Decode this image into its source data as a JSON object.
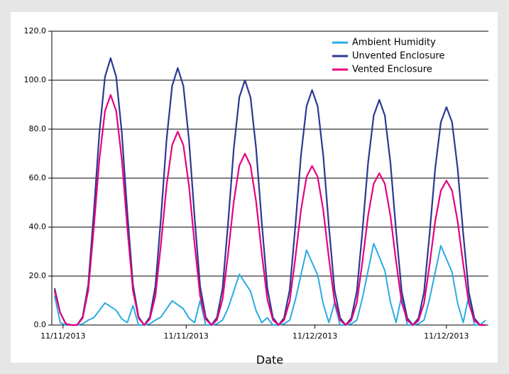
{
  "chart_data": {
    "type": "line",
    "x_label": "Date",
    "x": [
      0,
      2,
      4,
      6,
      8,
      10,
      12,
      14,
      16,
      18,
      20,
      22,
      24,
      26,
      28,
      30,
      32,
      34,
      36,
      38,
      40,
      42,
      44,
      46,
      48,
      50,
      52,
      54,
      56,
      58,
      60,
      62,
      64,
      66,
      68,
      70,
      72,
      74,
      76,
      78,
      80,
      82,
      84,
      86,
      88,
      90,
      92,
      94,
      96,
      98,
      100,
      102,
      104,
      106,
      108,
      110,
      112,
      114,
      116,
      118,
      120,
      122,
      124,
      126,
      128,
      130,
      132,
      134,
      136,
      138,
      140,
      142,
      144,
      146,
      148,
      150,
      152,
      154
    ],
    "xlim": [
      -1,
      155
    ],
    "xticks": [
      {
        "value": 3,
        "label": "11/11/2013"
      },
      {
        "value": 47,
        "label": "11/11/2013"
      },
      {
        "value": 93,
        "label": "11/12/2013"
      },
      {
        "value": 140,
        "label": "11/12/2013"
      }
    ],
    "ylim": [
      0,
      120
    ],
    "yticks": [
      {
        "value": 0,
        "label": "0.0"
      },
      {
        "value": 20,
        "label": "20.0"
      },
      {
        "value": 40,
        "label": "40.0"
      },
      {
        "value": 60,
        "label": "60.0"
      },
      {
        "value": 80,
        "label": "80.0"
      },
      {
        "value": 100,
        "label": "100.0"
      },
      {
        "value": 120,
        "label": "120.0"
      }
    ],
    "grid": true,
    "legend": "top-right",
    "series": [
      {
        "name": "Ambient Humidity",
        "color": "#29abe2",
        "values": [
          12,
          1,
          0,
          0,
          0,
          0.5,
          2,
          3,
          6,
          9,
          7.5,
          6,
          2.5,
          1,
          8,
          0,
          0,
          0.5,
          2,
          3.3,
          6.6,
          9.9,
          8.3,
          6.6,
          2.8,
          1,
          10,
          0,
          0,
          0.5,
          2,
          6.9,
          13.8,
          20.7,
          17.3,
          13.8,
          5.8,
          1,
          3,
          0,
          0,
          0.5,
          2,
          10.2,
          20.4,
          30.6,
          25.5,
          20.4,
          8.5,
          1,
          9,
          0,
          0,
          0.5,
          2,
          11.1,
          22.2,
          33.3,
          27.8,
          22.2,
          9.3,
          1,
          12,
          0,
          0,
          0.5,
          2,
          10.8,
          21.6,
          32.4,
          27,
          21.6,
          9,
          1,
          12,
          0,
          0,
          2
        ]
      },
      {
        "name": "Unvented Enclosure",
        "color": "#2b3990",
        "values": [
          15,
          5,
          0.5,
          0,
          0,
          3.3,
          16.4,
          45.8,
          78.5,
          101.4,
          109,
          101.4,
          78.5,
          45.8,
          16.4,
          3.3,
          0,
          3.2,
          15.8,
          44.1,
          75.6,
          97.7,
          105,
          97.7,
          75.6,
          44.1,
          15.8,
          3.2,
          0,
          3,
          15,
          42,
          72,
          93,
          100,
          93,
          72,
          42,
          15,
          3,
          0,
          2.9,
          14.4,
          40.3,
          69.1,
          89.3,
          96,
          89.3,
          69.1,
          40.3,
          14.4,
          2.9,
          0,
          2.8,
          13.8,
          38.6,
          66.2,
          85.6,
          92,
          85.6,
          66.2,
          38.6,
          13.8,
          2.8,
          0,
          2.7,
          13.4,
          37.4,
          64.1,
          82.8,
          89,
          82.8,
          64.1,
          37.4,
          13.4,
          2.7,
          0,
          0
        ]
      },
      {
        "name": "Vented Enclosure",
        "color": "#e6007e",
        "values": [
          14,
          5,
          0.5,
          0,
          0,
          2.8,
          14.1,
          39.5,
          67.7,
          87.4,
          94,
          87.4,
          67.7,
          39.5,
          14.1,
          2.8,
          0,
          2.4,
          11.9,
          33.2,
          56.9,
          73.5,
          79,
          73.5,
          56.9,
          33.2,
          11.9,
          2.4,
          0,
          2.1,
          10.5,
          29.4,
          50.4,
          65.1,
          70,
          65.1,
          50.4,
          29.4,
          10.5,
          2.1,
          0,
          2,
          9.8,
          27.3,
          46.8,
          60.5,
          65,
          60.5,
          46.8,
          27.3,
          9.8,
          2,
          0,
          1.9,
          9.3,
          26,
          44.6,
          57.7,
          62,
          57.7,
          44.6,
          26,
          9.3,
          1.9,
          0,
          1.8,
          8.9,
          24.8,
          42.5,
          54.9,
          59,
          54.9,
          42.5,
          24.8,
          8.9,
          1.8,
          0,
          0
        ]
      }
    ]
  }
}
